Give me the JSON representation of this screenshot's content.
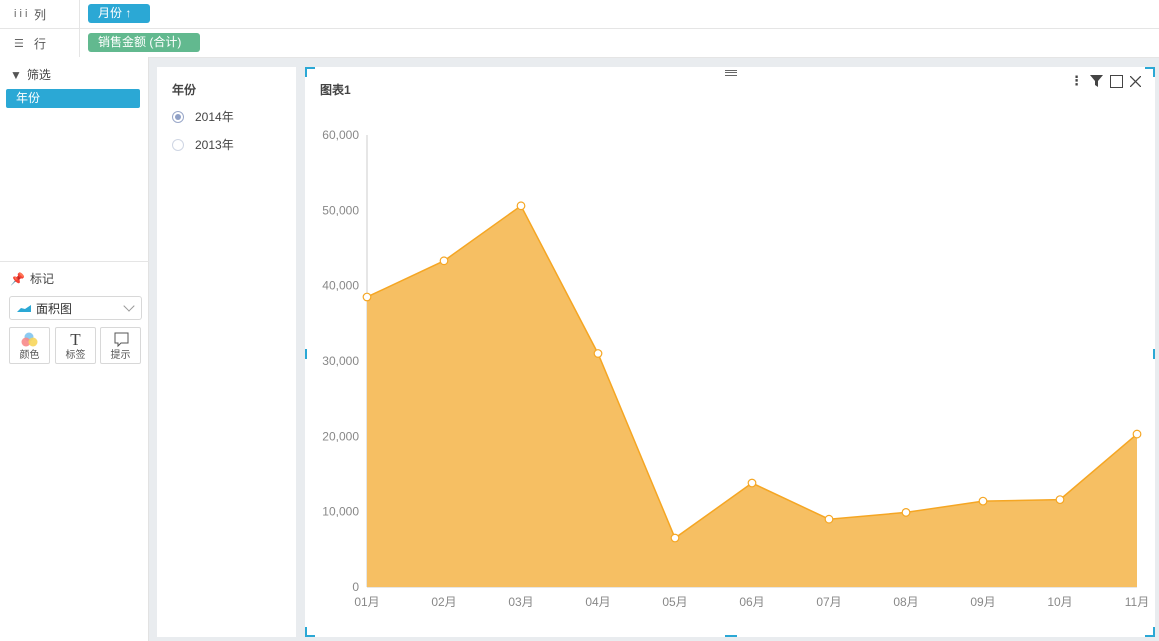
{
  "shelves": {
    "columns": {
      "label": "列",
      "pill": "月份 ↑"
    },
    "rows": {
      "label": "行",
      "pill": "销售金额 (合计)"
    }
  },
  "filter_section": {
    "title": "筛选",
    "field": "年份"
  },
  "marks_section": {
    "title": "标记",
    "mark_type": "面积图",
    "buttons": [
      {
        "label": "颜色",
        "icon": "color-icon"
      },
      {
        "label": "标签",
        "icon": "text-icon"
      },
      {
        "label": "提示",
        "icon": "tooltip-icon"
      }
    ]
  },
  "year_filter": {
    "title": "年份",
    "options": [
      {
        "label": "2014年",
        "checked": true
      },
      {
        "label": "2013年",
        "checked": false
      }
    ]
  },
  "accent_color": "#2ba8d5",
  "chart_data": {
    "type": "area",
    "title": "图表1",
    "categories": [
      "01月",
      "02月",
      "03月",
      "04月",
      "05月",
      "06月",
      "07月",
      "08月",
      "09月",
      "10月",
      "11月"
    ],
    "values": [
      38500,
      43300,
      50600,
      31000,
      6500,
      13800,
      9000,
      9900,
      11400,
      11600,
      20300
    ],
    "ylim": [
      0,
      60000
    ],
    "yticks": [
      "0",
      "10,000",
      "20,000",
      "30,000",
      "40,000",
      "50,000",
      "60,000"
    ],
    "fill_color": "#f6bf63",
    "line_color": "#f5a623",
    "grid": false
  }
}
